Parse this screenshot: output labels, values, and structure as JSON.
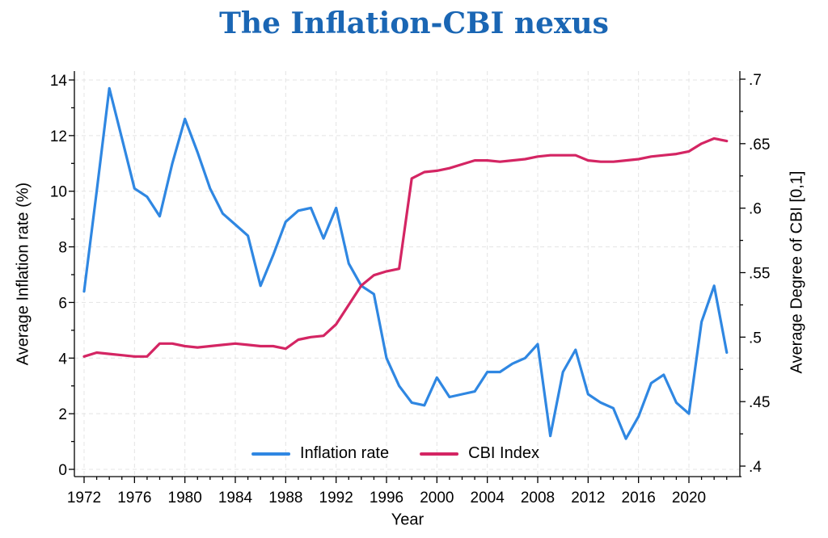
{
  "title": {
    "text": "The Inflation-CBI nexus",
    "color": "#1a66b4"
  },
  "chart_data": {
    "type": "line",
    "x": [
      1972,
      1973,
      1974,
      1975,
      1976,
      1977,
      1978,
      1979,
      1980,
      1981,
      1982,
      1983,
      1984,
      1985,
      1986,
      1987,
      1988,
      1989,
      1990,
      1991,
      1992,
      1993,
      1994,
      1995,
      1996,
      1997,
      1998,
      1999,
      2000,
      2001,
      2002,
      2003,
      2004,
      2005,
      2006,
      2007,
      2008,
      2009,
      2010,
      2011,
      2012,
      2013,
      2014,
      2015,
      2016,
      2017,
      2018,
      2019,
      2020,
      2021,
      2022,
      2023
    ],
    "series": [
      {
        "name": "Inflation rate",
        "axis": "left",
        "color": "#2f87e2",
        "values": [
          6.4,
          10.0,
          13.7,
          11.9,
          10.1,
          9.8,
          9.1,
          11.0,
          12.6,
          11.4,
          10.1,
          9.2,
          8.8,
          8.4,
          6.6,
          7.7,
          8.9,
          9.3,
          9.4,
          8.3,
          9.4,
          7.4,
          6.6,
          6.3,
          4.0,
          3.0,
          2.4,
          2.3,
          3.3,
          2.6,
          2.7,
          2.8,
          3.5,
          3.5,
          3.8,
          4.0,
          4.5,
          1.2,
          3.5,
          4.3,
          2.7,
          2.4,
          2.2,
          1.1,
          1.9,
          3.1,
          3.4,
          2.4,
          2.0,
          5.3,
          6.6,
          4.2
        ]
      },
      {
        "name": "CBI Index",
        "axis": "right",
        "color": "#d42563",
        "values": [
          0.485,
          0.488,
          0.487,
          0.486,
          0.485,
          0.485,
          0.495,
          0.495,
          0.493,
          0.492,
          0.493,
          0.494,
          0.495,
          0.494,
          0.493,
          0.493,
          0.491,
          0.498,
          0.5,
          0.501,
          0.51,
          0.525,
          0.54,
          0.548,
          0.551,
          0.553,
          0.623,
          0.628,
          0.629,
          0.631,
          0.634,
          0.637,
          0.637,
          0.636,
          0.637,
          0.638,
          0.64,
          0.641,
          0.641,
          0.641,
          0.637,
          0.636,
          0.636,
          0.637,
          0.638,
          0.64,
          0.641,
          0.642,
          0.644,
          0.65,
          0.654,
          0.652
        ]
      }
    ],
    "xlabel": "Year",
    "ylabel_left": "Average Inflation rate (%)",
    "ylabel_right": "Average Degree of CBI [0,1]",
    "ylim_left": [
      0,
      14
    ],
    "ylim_right": [
      0.4,
      0.7
    ],
    "yticks_left": [
      "0",
      "2",
      "4",
      "6",
      "8",
      "10",
      "12",
      "14"
    ],
    "yticks_right": [
      ".4",
      ".45",
      ".5",
      ".55",
      ".6",
      ".65",
      ".7"
    ],
    "xticks": [
      "1972",
      "1976",
      "1980",
      "1984",
      "1988",
      "1992",
      "1996",
      "2000",
      "2004",
      "2008",
      "2012",
      "2016",
      "2020"
    ],
    "grid": true,
    "legend": [
      "Inflation rate",
      "CBI Index"
    ],
    "legend_position": "bottom-center-inside"
  }
}
